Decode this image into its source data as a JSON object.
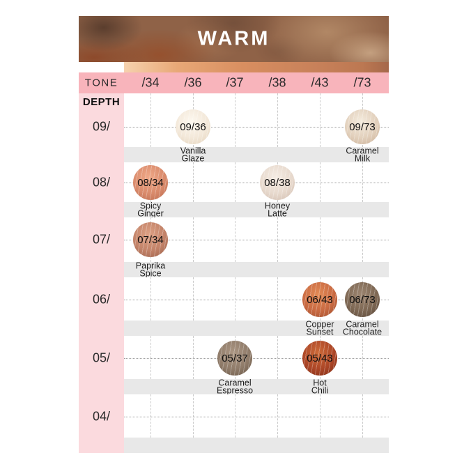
{
  "banner": {
    "title": "WARM"
  },
  "tone_header": {
    "label": "TONE",
    "tones": [
      "/34",
      "/36",
      "/37",
      "/38",
      "/43",
      "/73"
    ]
  },
  "depth_header": "DEPTH",
  "rows": [
    {
      "depth": "09/",
      "swatches": [
        {
          "code": "09/36",
          "tone": "/36",
          "col": 1,
          "name": "Vanilla Glaze",
          "name_lines": [
            "Vanilla",
            "Glaze"
          ],
          "swatch_colors": {
            "highlight": "#fdf8ef",
            "base": "#f3e8d9",
            "shadow": "#e3d2ba"
          }
        },
        {
          "code": "09/73",
          "tone": "/73",
          "col": 5,
          "name": "Caramel Milk",
          "name_lines": [
            "Caramel",
            "Milk"
          ],
          "swatch_colors": {
            "highlight": "#f4ebdd",
            "base": "#e2d0bc",
            "shadow": "#c9ad93"
          }
        }
      ]
    },
    {
      "depth": "08/",
      "swatches": [
        {
          "code": "08/34",
          "tone": "/34",
          "col": 0,
          "name": "Spicy Ginger",
          "name_lines": [
            "Spicy",
            "Ginger"
          ],
          "swatch_colors": {
            "highlight": "#f0a988",
            "base": "#d98a6b",
            "shadow": "#b9684c"
          }
        },
        {
          "code": "08/38",
          "tone": "/38",
          "col": 3,
          "name": "Honey Latte",
          "name_lines": [
            "Honey",
            "Latte"
          ],
          "swatch_colors": {
            "highlight": "#f5ece4",
            "base": "#e7d9cd",
            "shadow": "#cfbaac"
          }
        }
      ]
    },
    {
      "depth": "07/",
      "swatches": [
        {
          "code": "07/34",
          "tone": "/34",
          "col": 0,
          "name": "Paprika Spice",
          "name_lines": [
            "Paprika",
            "Spice"
          ],
          "swatch_colors": {
            "highlight": "#dda184",
            "base": "#c28268",
            "shadow": "#995d47"
          }
        }
      ]
    },
    {
      "depth": "06/",
      "swatches": [
        {
          "code": "06/43",
          "tone": "/43",
          "col": 4,
          "name": "Copper Sunset",
          "name_lines": [
            "Copper",
            "Sunset"
          ],
          "swatch_colors": {
            "highlight": "#e28a55",
            "base": "#c96a42",
            "shadow": "#9e4c2c"
          }
        },
        {
          "code": "06/73",
          "tone": "/73",
          "col": 5,
          "name": "Caramel Chocolate",
          "name_lines": [
            "Caramel",
            "Chocolate"
          ],
          "swatch_colors": {
            "highlight": "#9c8570",
            "base": "#7d6753",
            "shadow": "#584537"
          }
        }
      ]
    },
    {
      "depth": "05/",
      "swatches": [
        {
          "code": "05/37",
          "tone": "/37",
          "col": 2,
          "name": "Caramel Espresso",
          "name_lines": [
            "Caramel",
            "Espresso"
          ],
          "swatch_colors": {
            "highlight": "#ab9683",
            "base": "#8f7b69",
            "shadow": "#685646"
          }
        },
        {
          "code": "05/43",
          "tone": "/43",
          "col": 4,
          "name": "Hot Chili",
          "name_lines": [
            "Hot",
            "Chili"
          ],
          "swatch_colors": {
            "highlight": "#cd6a38",
            "base": "#ab4526",
            "shadow": "#7e2d15"
          }
        }
      ]
    },
    {
      "depth": "04/",
      "swatches": []
    }
  ],
  "colors": {
    "tone_row_bg": "#f8b4bb",
    "depth_col_bg": "#fbdade",
    "band_bg": "#e8e8e8",
    "banner_text": "#ffffff",
    "gradient_strip": [
      "#f6d2ae",
      "#e8a877",
      "#d88e60",
      "#c8815a",
      "#bc7852",
      "#a5684a"
    ]
  },
  "chart_data": {
    "type": "table",
    "title": "WARM",
    "columns_label": "TONE",
    "columns": [
      "/34",
      "/36",
      "/37",
      "/38",
      "/43",
      "/73"
    ],
    "rows_label": "DEPTH",
    "row_labels": [
      "09/",
      "08/",
      "07/",
      "06/",
      "05/",
      "04/"
    ],
    "cells": [
      {
        "depth": "09/",
        "tone": "/36",
        "code": "09/36",
        "name": "Vanilla Glaze"
      },
      {
        "depth": "09/",
        "tone": "/73",
        "code": "09/73",
        "name": "Caramel Milk"
      },
      {
        "depth": "08/",
        "tone": "/34",
        "code": "08/34",
        "name": "Spicy Ginger"
      },
      {
        "depth": "08/",
        "tone": "/38",
        "code": "08/38",
        "name": "Honey Latte"
      },
      {
        "depth": "07/",
        "tone": "/34",
        "code": "07/34",
        "name": "Paprika Spice"
      },
      {
        "depth": "06/",
        "tone": "/43",
        "code": "06/43",
        "name": "Copper Sunset"
      },
      {
        "depth": "06/",
        "tone": "/73",
        "code": "06/73",
        "name": "Caramel Chocolate"
      },
      {
        "depth": "05/",
        "tone": "/37",
        "code": "05/37",
        "name": "Caramel Espresso"
      },
      {
        "depth": "05/",
        "tone": "/43",
        "code": "05/43",
        "name": "Hot Chili"
      }
    ]
  }
}
